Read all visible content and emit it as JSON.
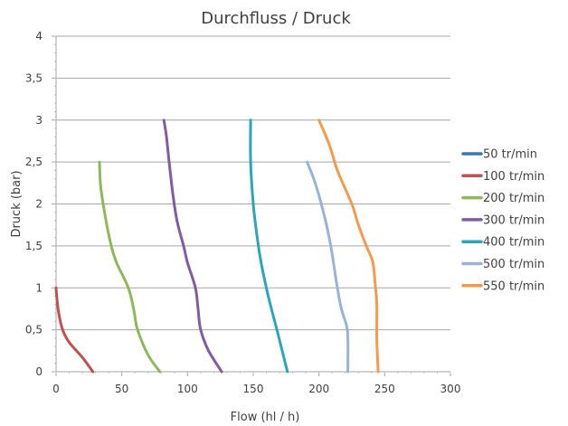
{
  "chart_data": {
    "type": "line",
    "title": "Durchfluss / Druck",
    "xlabel": "Flow (hl / h)",
    "ylabel": "Druck (bar)",
    "xlim": [
      0,
      300
    ],
    "ylim": [
      0,
      4
    ],
    "x_ticks": [
      "0",
      "50",
      "100",
      "150",
      "200",
      "250",
      "300"
    ],
    "y_ticks": [
      "0",
      "0,5",
      "1",
      "1,5",
      "2",
      "2,5",
      "3",
      "3,5",
      "4"
    ],
    "grid": "horizontal",
    "legend_position": "right",
    "series": [
      {
        "name": "50 tr/min",
        "color": "#3A76B5",
        "points": []
      },
      {
        "name": "100 tr/min",
        "color": "#C0504D",
        "points": [
          [
            28,
            0
          ],
          [
            20,
            0.17
          ],
          [
            10,
            0.35
          ],
          [
            5,
            0.5
          ],
          [
            2,
            0.7
          ],
          [
            0.5,
            0.9
          ],
          [
            0,
            1
          ]
        ]
      },
      {
        "name": "200 tr/min",
        "color": "#8FB85A",
        "points": [
          [
            79,
            0
          ],
          [
            70,
            0.2
          ],
          [
            62,
            0.5
          ],
          [
            59,
            0.75
          ],
          [
            55,
            1.0
          ],
          [
            46,
            1.3
          ],
          [
            42,
            1.5
          ],
          [
            38,
            1.8
          ],
          [
            34,
            2.2
          ],
          [
            33,
            2.5
          ]
        ]
      },
      {
        "name": "300 tr/min",
        "color": "#7F5CA3",
        "points": [
          [
            126,
            0
          ],
          [
            116,
            0.25
          ],
          [
            110,
            0.5
          ],
          [
            108,
            0.75
          ],
          [
            106,
            1.0
          ],
          [
            100,
            1.3
          ],
          [
            97,
            1.5
          ],
          [
            92,
            1.8
          ],
          [
            89,
            2.1
          ],
          [
            86,
            2.5
          ],
          [
            84,
            2.8
          ],
          [
            82,
            3
          ]
        ]
      },
      {
        "name": "400 tr/min",
        "color": "#2AA5BC",
        "points": [
          [
            176,
            0
          ],
          [
            168,
            0.5
          ],
          [
            163,
            0.8
          ],
          [
            160,
            1.0
          ],
          [
            156,
            1.3
          ],
          [
            153,
            1.6
          ],
          [
            150,
            2.0
          ],
          [
            148,
            2.5
          ],
          [
            148,
            3
          ]
        ]
      },
      {
        "name": "500 tr/min",
        "color": "#98B3D6",
        "points": [
          [
            222,
            0
          ],
          [
            222,
            0.4
          ],
          [
            221,
            0.55
          ],
          [
            217,
            0.75
          ],
          [
            214,
            1.0
          ],
          [
            212,
            1.2
          ],
          [
            209,
            1.5
          ],
          [
            205,
            1.8
          ],
          [
            200,
            2.1
          ],
          [
            196,
            2.3
          ],
          [
            191,
            2.5
          ]
        ]
      },
      {
        "name": "550 tr/min",
        "color": "#F59A4C",
        "points": [
          [
            245,
            0
          ],
          [
            244,
            0.4
          ],
          [
            244,
            0.8
          ],
          [
            243,
            1.0
          ],
          [
            241,
            1.3
          ],
          [
            236,
            1.5
          ],
          [
            230,
            1.75
          ],
          [
            225,
            2.0
          ],
          [
            214,
            2.4
          ],
          [
            208,
            2.7
          ],
          [
            200,
            3
          ]
        ]
      }
    ]
  }
}
